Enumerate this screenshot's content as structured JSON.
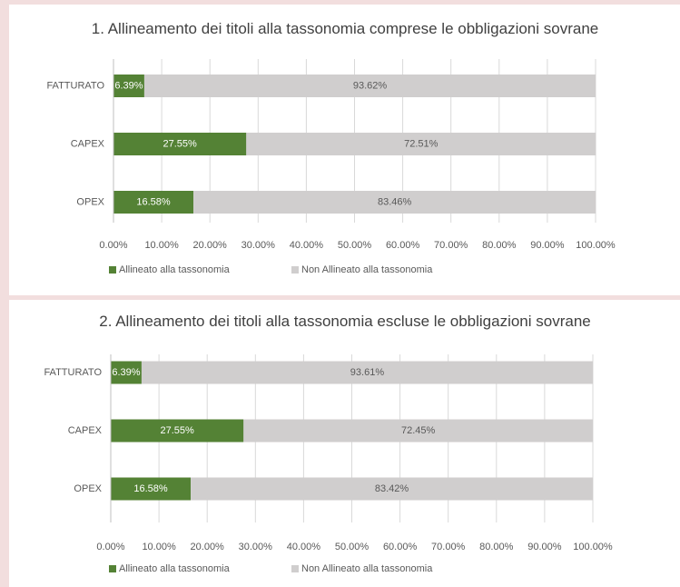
{
  "chart_data": [
    {
      "type": "stacked_bar_horizontal",
      "title": "1. Allineamento dei titoli alla tassonomia comprese le obbligazioni sovrane",
      "categories": [
        "FATTURATO",
        "CAPEX",
        "OPEX"
      ],
      "series": [
        {
          "name": "Allineato alla tassonomia",
          "color": "#548235",
          "values": [
            6.39,
            27.55,
            16.58
          ],
          "value_labels": [
            "6.39%",
            "27.55%",
            "16.58%"
          ]
        },
        {
          "name": "Non Allineato alla tassonomia",
          "color": "#d0cece",
          "values": [
            93.62,
            72.51,
            83.46
          ],
          "value_labels": [
            "93.62%",
            "72.51%",
            "83.46%"
          ]
        }
      ],
      "xlim": [
        0,
        100
      ],
      "xticks": [
        {
          "value": 0,
          "label": "0.00%"
        },
        {
          "value": 10,
          "label": "10.00%"
        },
        {
          "value": 20,
          "label": "20.00%"
        },
        {
          "value": 30,
          "label": "30.00%"
        },
        {
          "value": 40,
          "label": "40.00%"
        },
        {
          "value": 50,
          "label": "50.00%"
        },
        {
          "value": 60,
          "label": "60.00%"
        },
        {
          "value": 70,
          "label": "70.00%"
        },
        {
          "value": 80,
          "label": "80.00%"
        },
        {
          "value": 90,
          "label": "90.00%"
        },
        {
          "value": 100,
          "label": "100.00%"
        }
      ],
      "grid": true,
      "legend": "bottom"
    },
    {
      "type": "stacked_bar_horizontal",
      "title": "2. Allineamento dei titoli alla tassonomia escluse le obbligazioni sovrane",
      "categories": [
        "FATTURATO",
        "CAPEX",
        "OPEX"
      ],
      "series": [
        {
          "name": "Allineato alla tassonomia",
          "color": "#548235",
          "values": [
            6.39,
            27.55,
            16.58
          ],
          "value_labels": [
            "6.39%",
            "27.55%",
            "16.58%"
          ]
        },
        {
          "name": "Non Allineato alla tassonomia",
          "color": "#d0cece",
          "values": [
            93.61,
            72.45,
            83.42
          ],
          "value_labels": [
            "93.61%",
            "72.45%",
            "83.42%"
          ]
        }
      ],
      "xlim": [
        0,
        100
      ],
      "xticks": [
        {
          "value": 0,
          "label": "0.00%"
        },
        {
          "value": 10,
          "label": "10.00%"
        },
        {
          "value": 20,
          "label": "20.00%"
        },
        {
          "value": 30,
          "label": "30.00%"
        },
        {
          "value": 40,
          "label": "40.00%"
        },
        {
          "value": 50,
          "label": "50.00%"
        },
        {
          "value": 60,
          "label": "60.00%"
        },
        {
          "value": 70,
          "label": "70.00%"
        },
        {
          "value": 80,
          "label": "80.00%"
        },
        {
          "value": 90,
          "label": "90.00%"
        },
        {
          "value": 100,
          "label": "100.00%"
        }
      ],
      "grid": true,
      "legend": "bottom"
    }
  ]
}
